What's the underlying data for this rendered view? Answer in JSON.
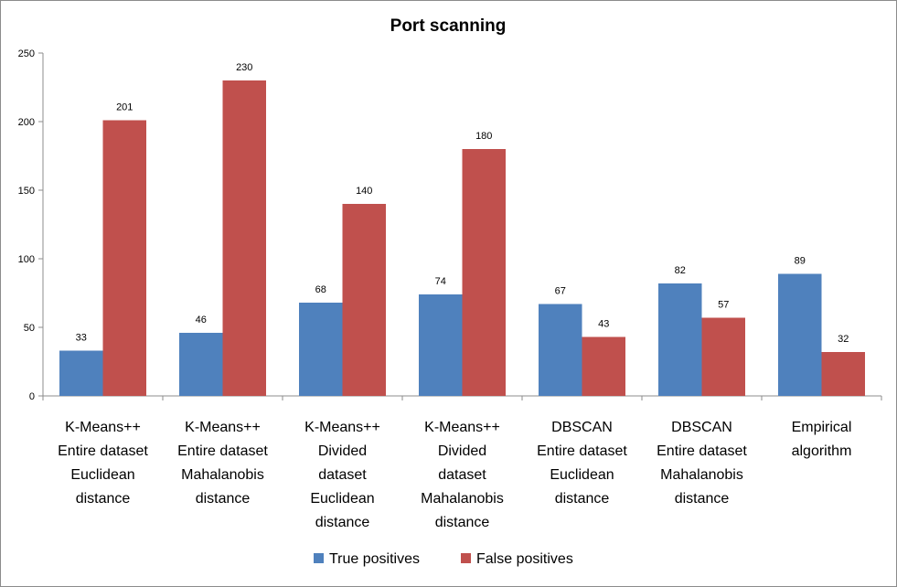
{
  "chart_data": {
    "type": "bar",
    "title": "Port scanning",
    "xlabel": "",
    "ylabel": "",
    "ylim": [
      0,
      250
    ],
    "yticks": [
      0,
      50,
      100,
      150,
      200,
      250
    ],
    "grid": false,
    "legend_position": "bottom",
    "categories": [
      [
        "K-Means++",
        "Entire dataset",
        "Euclidean",
        "distance"
      ],
      [
        "K-Means++",
        "Entire dataset",
        "Mahalanobis",
        "distance"
      ],
      [
        "K-Means++",
        "Divided",
        "dataset",
        "Euclidean",
        "distance"
      ],
      [
        "K-Means++",
        "Divided",
        "dataset",
        "Mahalanobis",
        "distance"
      ],
      [
        "DBSCAN",
        "Entire dataset",
        "Euclidean",
        "distance"
      ],
      [
        "DBSCAN",
        "Entire dataset",
        "Mahalanobis",
        "distance"
      ],
      [
        "Empirical",
        "algorithm"
      ]
    ],
    "series": [
      {
        "name": "True positives",
        "color": "#4f81bd",
        "values": [
          33,
          46,
          68,
          74,
          67,
          82,
          89
        ]
      },
      {
        "name": "False positives",
        "color": "#c0504d",
        "values": [
          201,
          230,
          140,
          180,
          43,
          57,
          32
        ]
      }
    ]
  }
}
